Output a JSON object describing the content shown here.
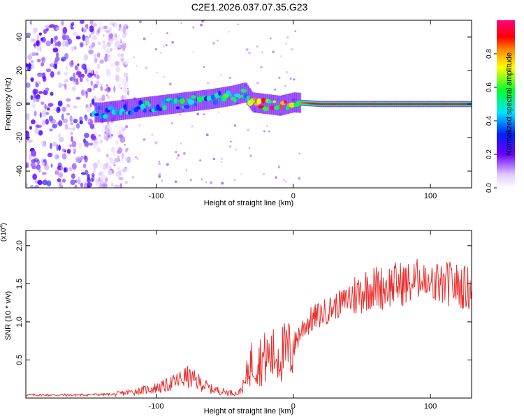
{
  "figure": {
    "title": "C2E1.2026.037.07.35.G23"
  },
  "colorbar": {
    "label": "Normalized spectral amplitude",
    "ticks": [
      "0.0",
      "0.2",
      "0.4",
      "0.6",
      "0.8"
    ],
    "tick_values": [
      0.0,
      0.2,
      0.4,
      0.6,
      0.8
    ]
  },
  "chart_data": [
    {
      "type": "heatmap",
      "title": "C2E1.2026.037.07.35.G23",
      "xlabel": "Height of straight line (km)",
      "ylabel": "Frequency (Hz)",
      "xlim": [
        -195,
        130
      ],
      "ylim": [
        -50,
        50
      ],
      "x_ticks": [
        -100,
        0,
        100
      ],
      "x_tick_labels": [
        "-100",
        "0",
        "100"
      ],
      "y_ticks": [
        -40,
        -20,
        0,
        20,
        40
      ],
      "y_tick_labels": [
        "-40",
        "-20",
        "0",
        "20",
        "40"
      ],
      "color_range": [
        0,
        1
      ],
      "description_points": {
        "ridge_x": [
          -140,
          -120,
          -100,
          -80,
          -60,
          -45,
          -35,
          -30,
          -20,
          -10,
          0,
          20,
          60,
          100,
          130
        ],
        "ridge_freq": [
          -5,
          -3,
          -1,
          1,
          3,
          5,
          7,
          1,
          0,
          -1,
          1,
          0,
          0,
          0,
          0
        ],
        "ridge_amplitude": [
          0.45,
          0.45,
          0.5,
          0.5,
          0.5,
          0.55,
          0.5,
          0.7,
          0.85,
          0.85,
          0.8,
          0.95,
          0.95,
          0.95,
          0.95
        ],
        "noise_region_x": [
          -195,
          -145
        ],
        "noise_amplitude": 0.2
      }
    },
    {
      "type": "line",
      "xlabel": "Height of straight line (km)",
      "ylabel": "SNR (10 * v/v)",
      "y_exponent_label": "(x10",
      "y_exponent_sup": "4",
      "y_exponent_close": ")",
      "xlim": [
        -195,
        130
      ],
      "ylim": [
        0,
        2.2
      ],
      "x_ticks": [
        -100,
        0,
        100
      ],
      "x_tick_labels": [
        "-100",
        "0",
        "100"
      ],
      "y_ticks": [
        0.5,
        1.0,
        1.5,
        2.0
      ],
      "y_tick_labels": [
        "0.5",
        "1.0",
        "1.5",
        "2.0"
      ],
      "color": "#e8302e",
      "series": [
        {
          "name": "SNR",
          "x": [
            -195,
            -160,
            -130,
            -110,
            -95,
            -85,
            -78,
            -70,
            -60,
            -50,
            -40,
            -35,
            -32,
            -25,
            -15,
            -5,
            0,
            3,
            8,
            15,
            25,
            35,
            45,
            55,
            65,
            75,
            85,
            92,
            98,
            105,
            115,
            125,
            130
          ],
          "y": [
            0.04,
            0.04,
            0.05,
            0.1,
            0.15,
            0.22,
            0.28,
            0.22,
            0.12,
            0.08,
            0.06,
            0.2,
            0.45,
            0.5,
            0.55,
            0.6,
            0.65,
            0.8,
            0.95,
            1.05,
            1.15,
            1.25,
            1.35,
            1.45,
            1.45,
            1.5,
            1.5,
            1.55,
            1.45,
            1.5,
            1.5,
            1.45,
            1.45
          ]
        }
      ]
    }
  ]
}
